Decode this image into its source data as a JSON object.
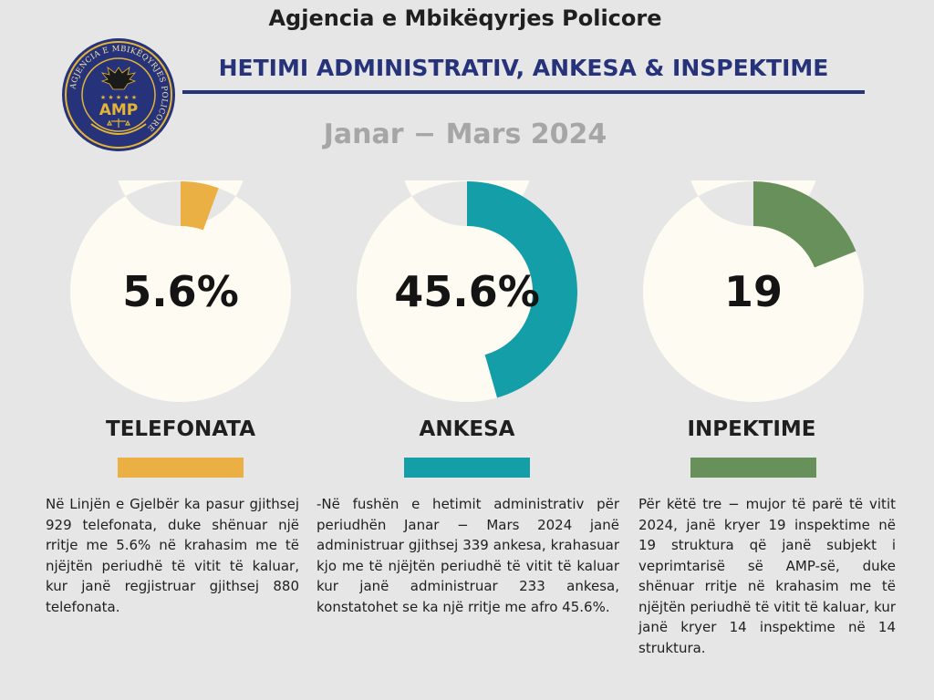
{
  "header": {
    "org_name": "Agjencia e Mbikëqyrjes Policore",
    "title": "HETIMI ADMINISTRATIV, ANKESA & INSPEKTIME",
    "period": "Janar − Mars 2024"
  },
  "logo": {
    "text": "AMP",
    "ring_text": "AGJENCIA E MBIKËQYRJES POLICORE",
    "colors": {
      "navy": "#26337a",
      "gold": "#e3b436"
    }
  },
  "metrics": [
    {
      "value_text": "5.6%",
      "fraction": 0.056,
      "label": "TELEFONATA",
      "color": "#ebb043",
      "description": "Në Linjën e Gjelbër ka pasur gjithsej 929 telefonata, duke shënuar një rritje me 5.6% në krahasim me të njëjtën periudhë të vitit të kaluar, kur janë regjistruar gjithsej 880 telefonata."
    },
    {
      "value_text": "45.6%",
      "fraction": 0.456,
      "label": "ANKESA",
      "color": "#139ea8",
      "description": "-Në fushën e hetimit administrativ për periudhën Janar − Mars 2024 janë administruar gjithsej 339 ankesa, krahasuar kjo me të njëjtën periudhë të vitit të kaluar kur janë administruar 233 ankesa, konstatohet se ka një rritje me afro 45.6%."
    },
    {
      "value_text": "19",
      "fraction": 0.19,
      "label": "INPEKTIME",
      "color": "#67905b",
      "description": "Për këtë tre − mujor të parë të vitit 2024, janë kryer 19 inspektime në 19 struktura që janë subjekt i veprimtarisë së AMP-së, duke shënuar rritje në krahasim me të njëjtën periudhë të vitit të kaluar, kur janë kryer 14 inspektime në 14 struktura."
    }
  ],
  "chart_data": [
    {
      "type": "pie",
      "labels": [
        "TELEFONATA"
      ],
      "values": [
        5.6
      ],
      "annotation": "5.6%"
    },
    {
      "type": "pie",
      "labels": [
        "ANKESA"
      ],
      "values": [
        45.6
      ],
      "annotation": "45.6%"
    },
    {
      "type": "pie",
      "labels": [
        "INPEKTIME"
      ],
      "values": [
        19
      ],
      "annotation": "19"
    }
  ]
}
